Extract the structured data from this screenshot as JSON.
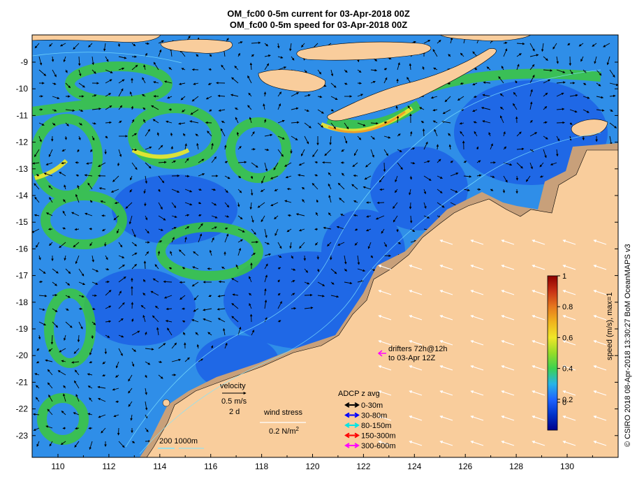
{
  "title_line1": "OM_fc00 0-5m current for 03-Apr-2018 00Z",
  "title_line2": "OM_fc00 0-5m speed for 03-Apr-2018 00Z",
  "credit": "© CSIRO 2018  08-Apr-2018 13:30:27 BoM OceanMAPS v3",
  "x_ticks": [
    "110",
    "112",
    "114",
    "116",
    "118",
    "120",
    "122",
    "124",
    "126",
    "128",
    "130"
  ],
  "y_ticks": [
    "-9",
    "-10",
    "-11",
    "-12",
    "-13",
    "-14",
    "-15",
    "-16",
    "-17",
    "-18",
    "-19",
    "-20",
    "-21",
    "-22",
    "-23"
  ],
  "colorbar": {
    "label": "speed (m/s), max=1",
    "ticks": [
      "1",
      "0.8",
      "0.6",
      "0.4",
      "0.2",
      "0"
    ]
  },
  "legend": {
    "velocity_title": "velocity",
    "velocity_scale": "0.5 m/s",
    "velocity_time": "2 d",
    "wind_title": "wind stress",
    "wind_scale": "0.2 N/m",
    "wind_sup": "2",
    "adcp_title": "ADCP z avg",
    "adcp_items": [
      {
        "label": "0-30m",
        "color": "#000000"
      },
      {
        "label": "30-80m",
        "color": "#0000ff"
      },
      {
        "label": "80-150m",
        "color": "#00e5e5"
      },
      {
        "label": "150-300m",
        "color": "#ff0000"
      },
      {
        "label": "300-600m",
        "color": "#ff00ff"
      }
    ],
    "drifters_line1": "drifters 72h@12h",
    "drifters_line2": "to 03-Apr 12Z",
    "drifter_color": "#ff00ff",
    "isobaths_label": "200  1000m"
  },
  "colors": {
    "land": "#f9cd9c",
    "shelf": "#c8a07a",
    "ocean_deep": "#1e64e6",
    "ocean_mid": "#2f8ee8",
    "current_green": "#3cc83c",
    "current_yellow": "#e6e632",
    "current_orange": "#f0a028"
  }
}
